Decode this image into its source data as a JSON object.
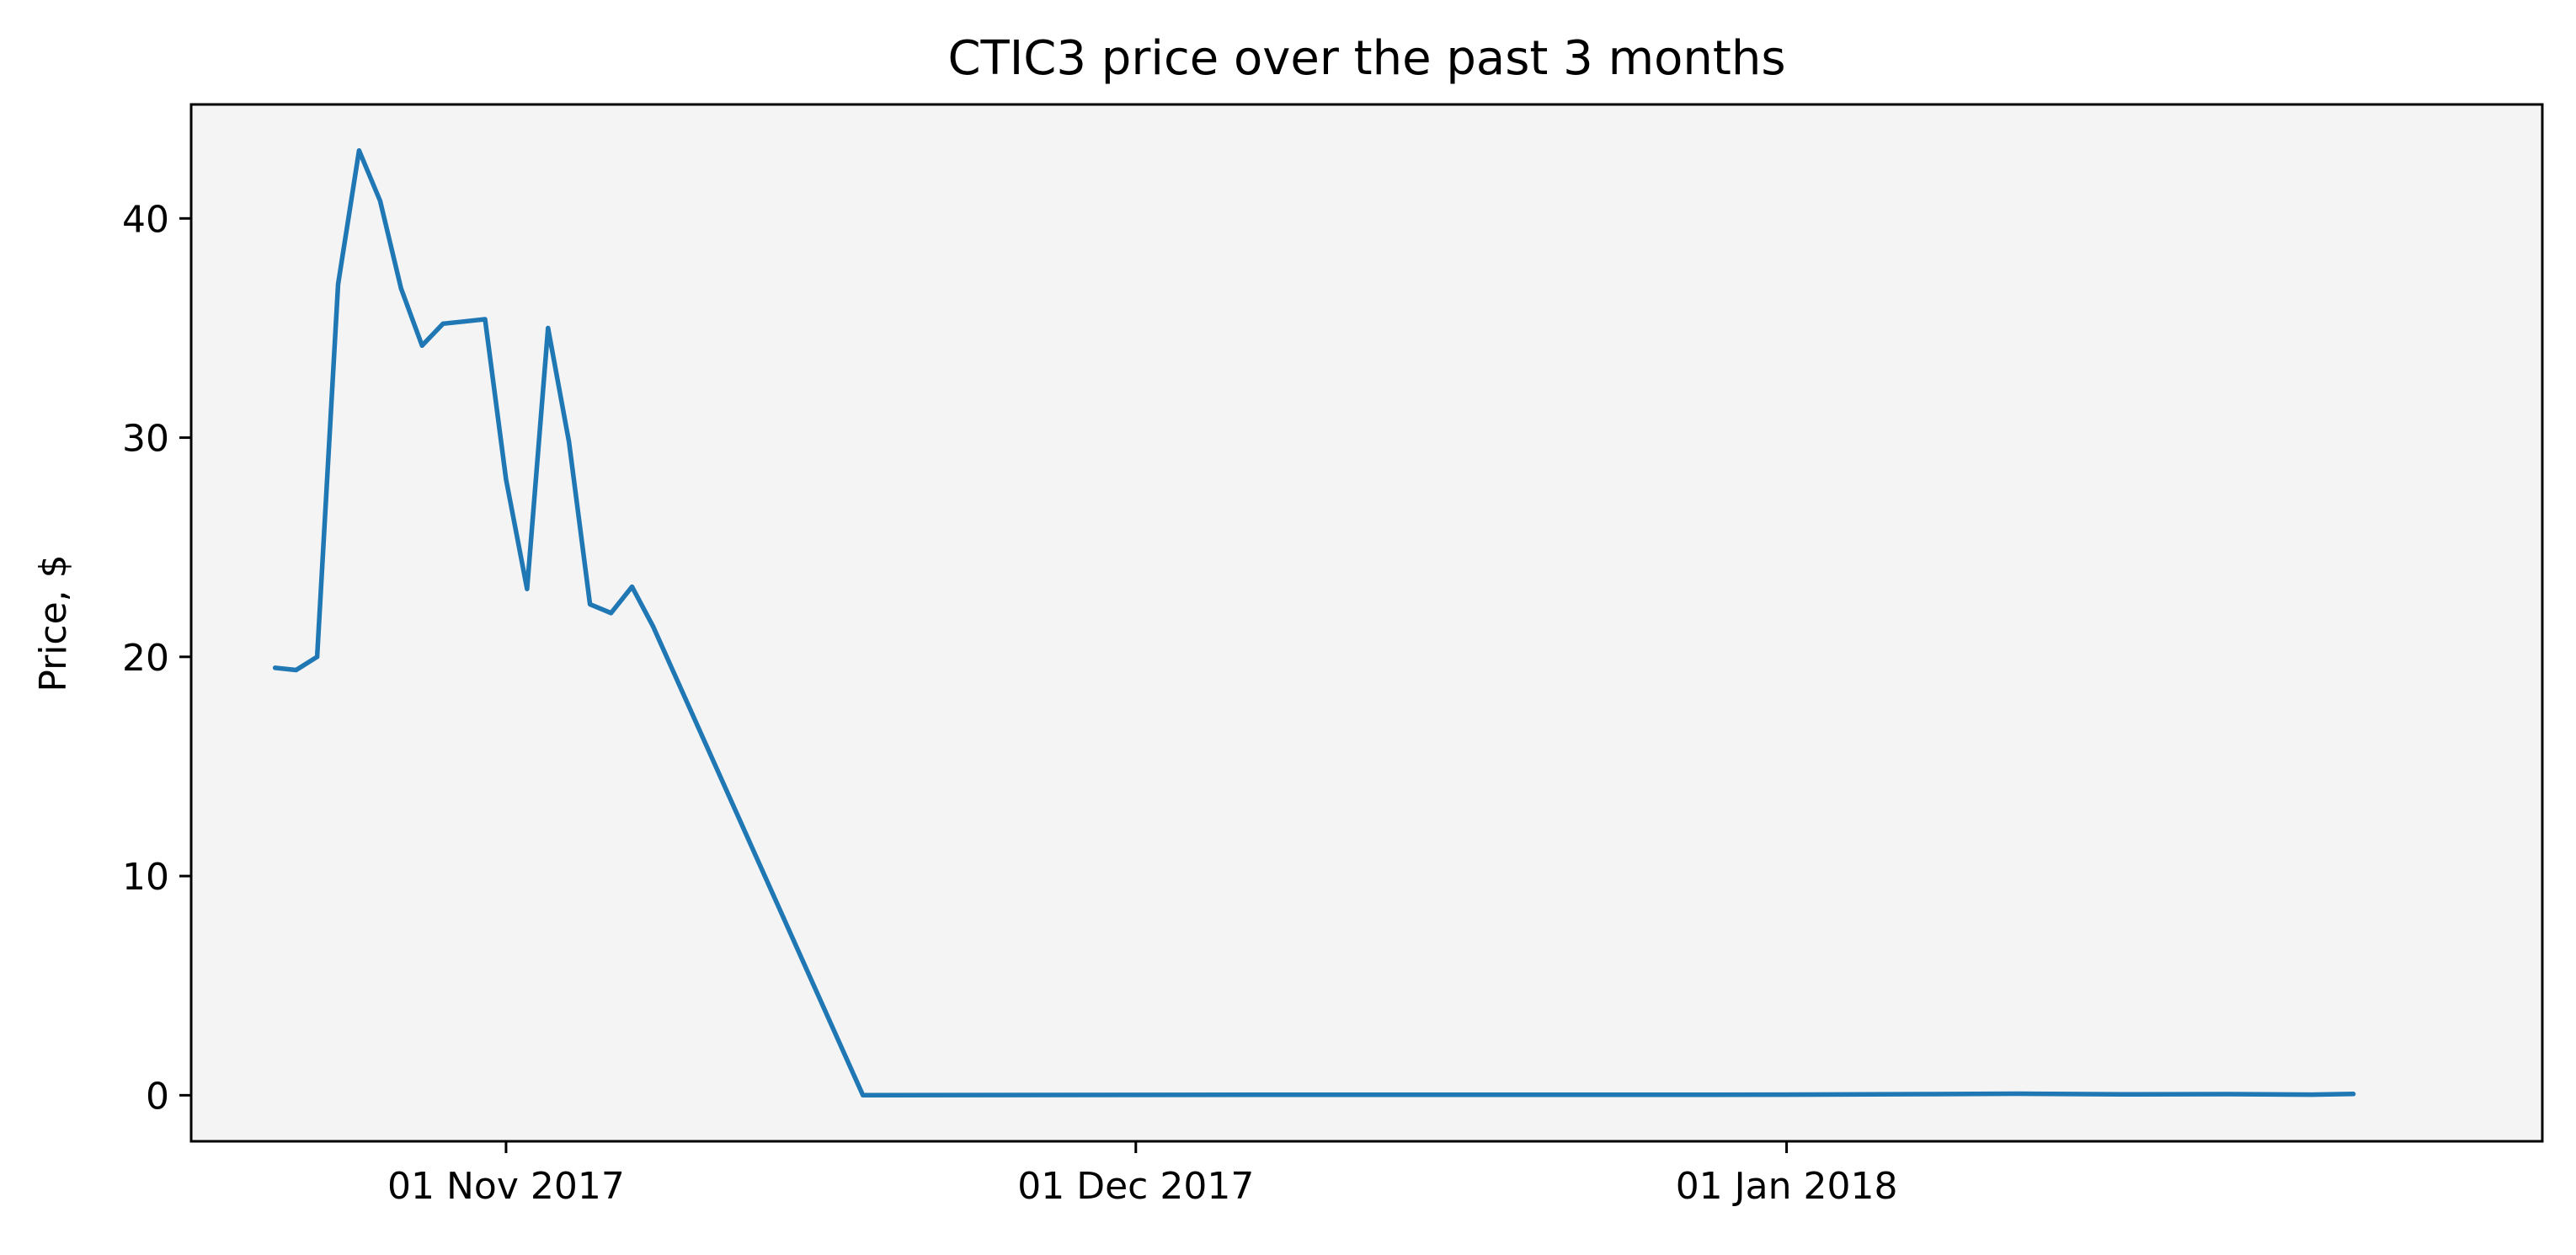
{
  "chart_data": {
    "type": "line",
    "title": "CTIC3 price over the past 3 months",
    "xlabel": "",
    "ylabel": "Price, $",
    "x_ticks": [
      {
        "date": "2017-11-01",
        "label": "01 Nov 2017"
      },
      {
        "date": "2017-12-01",
        "label": "01 Dec 2017"
      },
      {
        "date": "2018-01-01",
        "label": "01 Jan 2018"
      }
    ],
    "y_ticks": [
      0,
      10,
      20,
      30,
      40
    ],
    "xlim": [
      "2017-10-17",
      "2018-02-06"
    ],
    "ylim": [
      -2.1,
      45.2
    ],
    "grid": false,
    "colors": {
      "line": "#1f77b4",
      "plot_background": "#f4f4f4",
      "axes": "#000000"
    },
    "series": [
      {
        "x": [
          "2017-10-21",
          "2017-10-22",
          "2017-10-23",
          "2017-10-24",
          "2017-10-25",
          "2017-10-26",
          "2017-10-27",
          "2017-10-28",
          "2017-10-29",
          "2017-10-30",
          "2017-10-31",
          "2017-11-01",
          "2017-11-02",
          "2017-11-03",
          "2017-11-04",
          "2017-11-05",
          "2017-11-06",
          "2017-11-07",
          "2017-11-08",
          "2017-11-18",
          "2017-12-07",
          "2017-12-25",
          "2018-01-01",
          "2018-01-08",
          "2018-01-12",
          "2018-01-17",
          "2018-01-22",
          "2018-01-26",
          "2018-01-28"
        ],
        "values": [
          19.5,
          19.4,
          20.0,
          37.0,
          43.1,
          40.8,
          36.8,
          34.2,
          35.2,
          35.3,
          35.4,
          28.1,
          23.1,
          35.0,
          29.8,
          22.4,
          22.0,
          23.2,
          21.4,
          0.0,
          0.02,
          0.02,
          0.03,
          0.05,
          0.07,
          0.04,
          0.05,
          0.03,
          0.06
        ]
      }
    ]
  }
}
